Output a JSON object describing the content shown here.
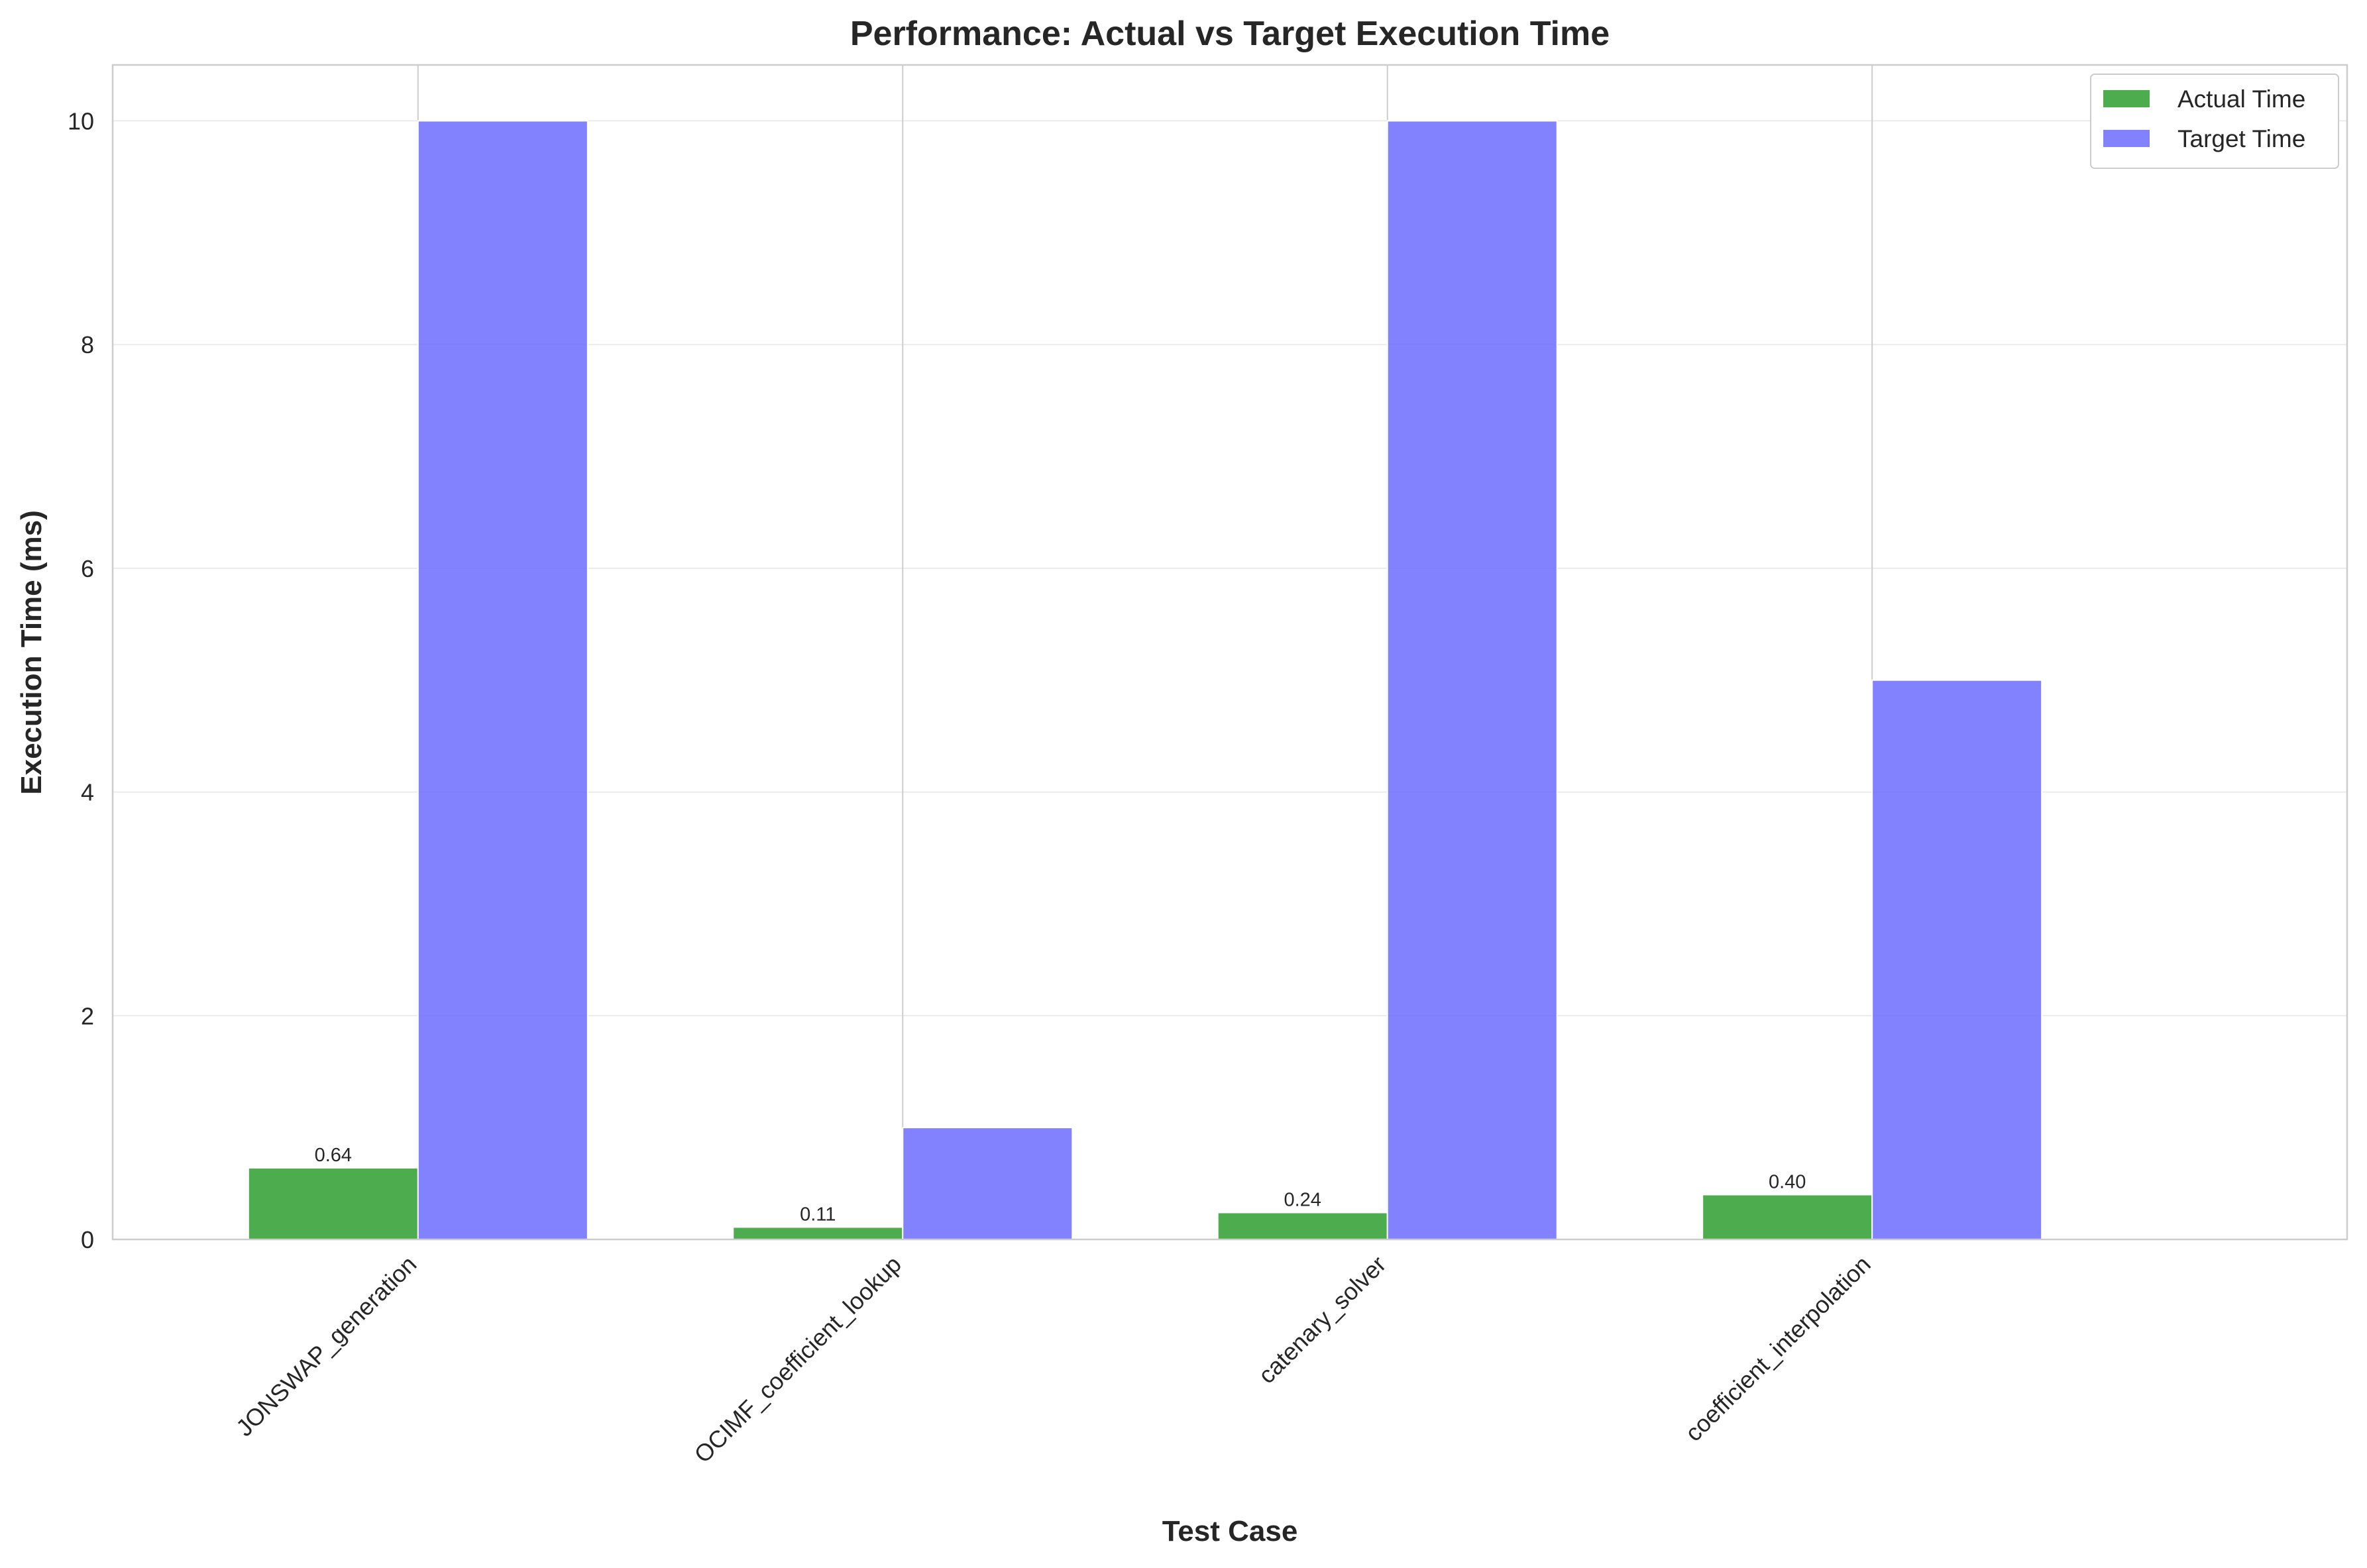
{
  "chart_data": {
    "type": "bar",
    "title": "Performance: Actual vs Target Execution Time",
    "xlabel": "Test Case",
    "ylabel": "Execution Time (ms)",
    "categories": [
      "JONSWAP_generation",
      "OCIMF_coefficient_lookup",
      "catenary_solver",
      "coefficient_interpolation"
    ],
    "series": [
      {
        "name": "Actual Time",
        "values": [
          0.64,
          0.11,
          0.24,
          0.4
        ],
        "color": "#2e9e2e",
        "data_labels": [
          "0.64",
          "0.11",
          "0.24",
          "0.40"
        ]
      },
      {
        "name": "Target Time",
        "values": [
          10,
          1,
          10,
          5
        ],
        "color": "#6666ff"
      }
    ],
    "ylim": [
      0,
      10.5
    ],
    "yticks": [
      0,
      2,
      4,
      6,
      8,
      10
    ],
    "ytick_labels": [
      "0",
      "2",
      "4",
      "6",
      "8",
      "10"
    ],
    "grid": true,
    "legend_position": "top-right"
  }
}
